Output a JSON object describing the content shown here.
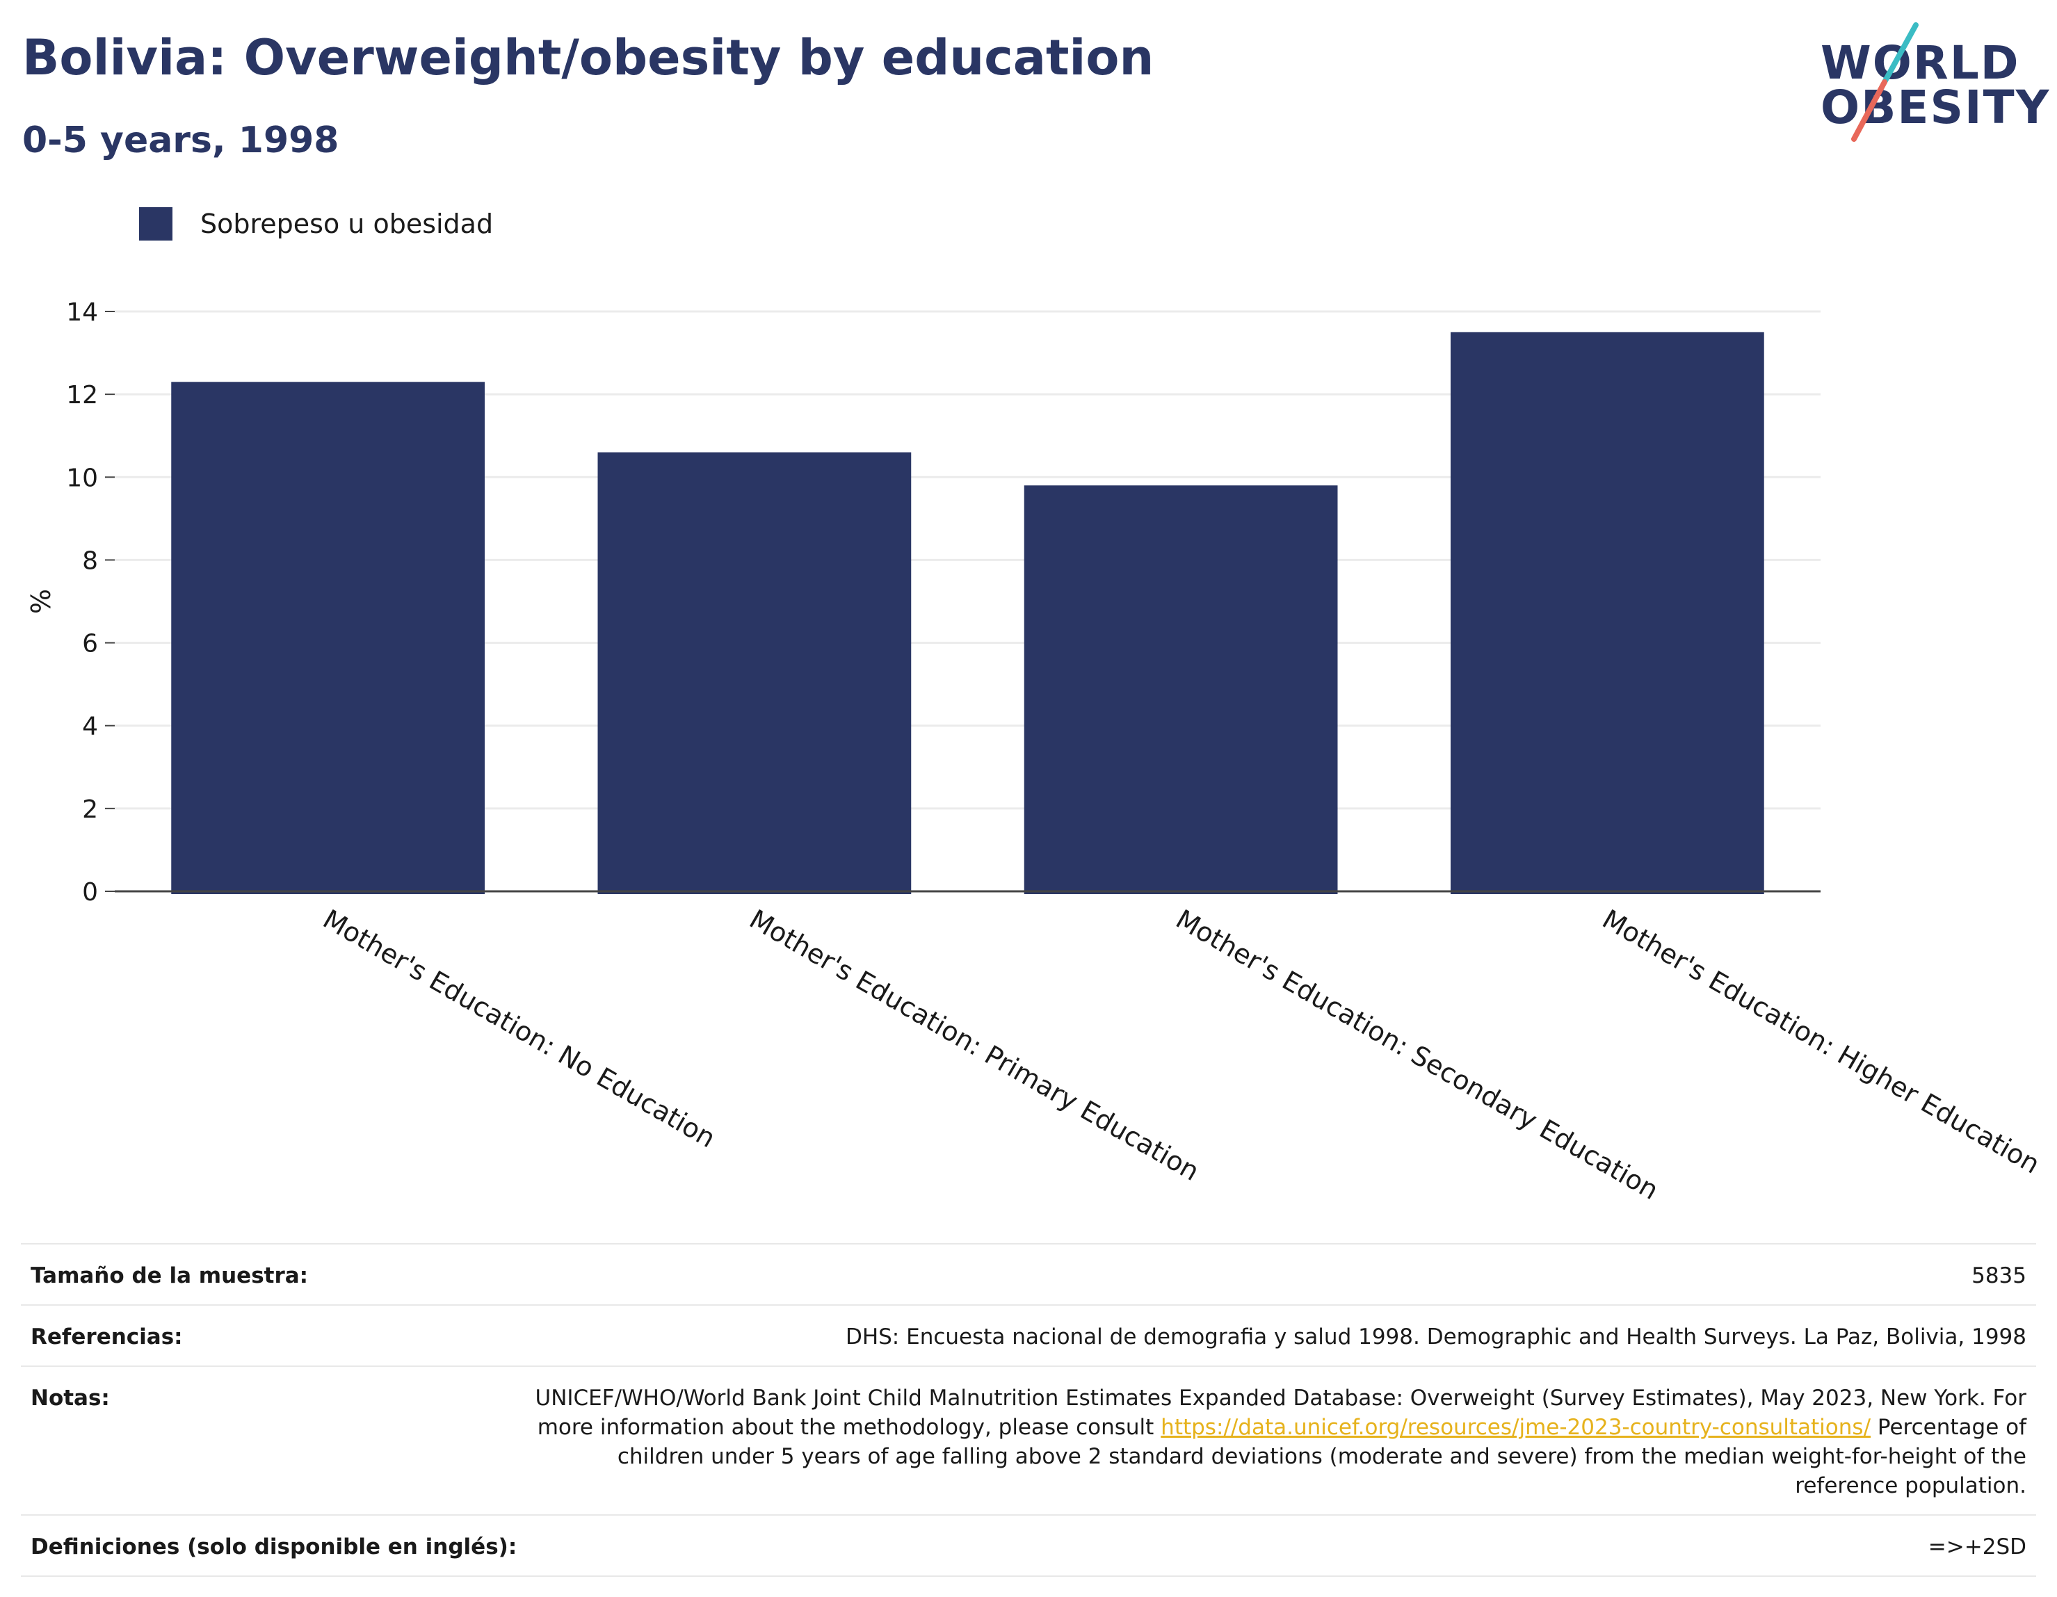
{
  "header": {
    "title": "Bolivia: Overweight/obesity by education",
    "subtitle": "0-5 years, 1998"
  },
  "logo": {
    "line1": "WORLD",
    "line2": "OBESITY",
    "colors": {
      "text": "#2a3664",
      "slash_top": "#3bbcc4",
      "slash_bottom": "#e8685a"
    }
  },
  "legend": {
    "label": "Sobrepeso u obesidad",
    "color": "#2a3664"
  },
  "chart_data": {
    "type": "bar",
    "categories": [
      "Mother's Education: No Education",
      "Mother's Education: Primary Education",
      "Mother's Education: Secondary Education",
      "Mother's Education: Higher Education"
    ],
    "series": [
      {
        "name": "Sobrepeso u obesidad",
        "values": [
          12.3,
          10.6,
          9.8,
          13.5
        ],
        "color": "#2a3664"
      }
    ],
    "ylabel": "%",
    "ylim": [
      0,
      14
    ],
    "yticks": [
      0,
      2,
      4,
      6,
      8,
      10,
      12,
      14
    ],
    "grid": true,
    "legend_position": "top-left"
  },
  "info": {
    "rows": [
      {
        "label": "Tamaño de la muestra:",
        "value": "5835"
      },
      {
        "label": "Referencias:",
        "value": "DHS: Encuesta nacional de demografia y salud 1998. Demographic and Health Surveys. La Paz, Bolivia, 1998"
      },
      {
        "label": "Notas:",
        "value_before": "UNICEF/WHO/World Bank Joint Child Malnutrition Estimates Expanded Database: Overweight (Survey Estimates), May 2023, New York. For more information about the methodology, please consult",
        "link": "https://data.unicef.org/resources/jme-2023-country-consultations/",
        "value_after": "Percentage of children under 5 years of age falling above 2 standard deviations (moderate and severe) from the median weight-for-height of the reference population."
      },
      {
        "label": "Definiciones (solo disponible en inglés):",
        "value": "=>+2SD"
      }
    ]
  }
}
